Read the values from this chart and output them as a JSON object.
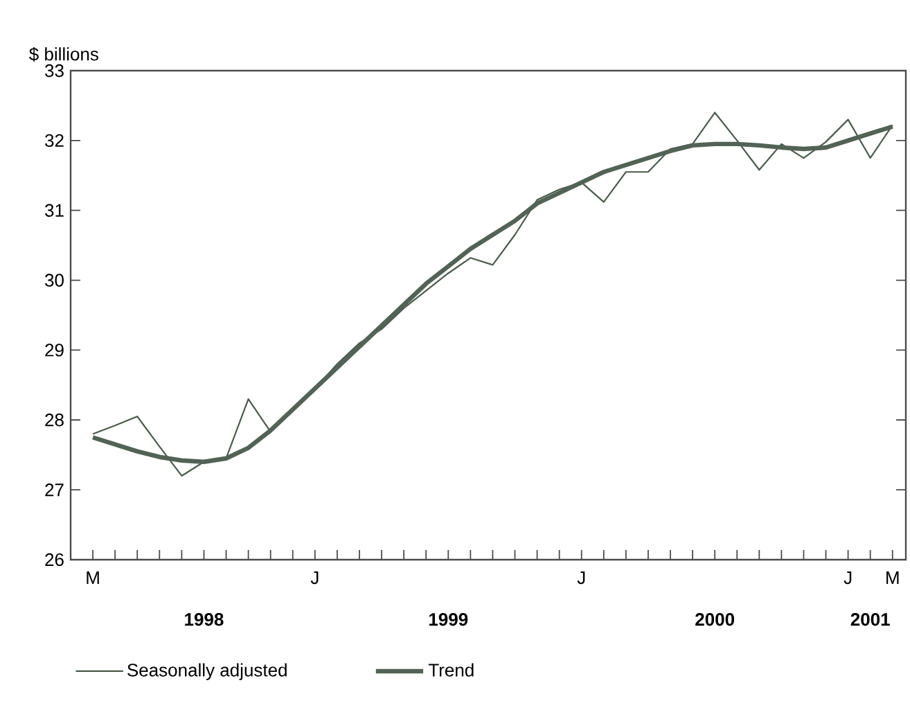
{
  "chart_data": {
    "type": "line",
    "ylabel": "$ billions",
    "categories": [
      "M",
      null,
      null,
      null,
      null,
      null,
      null,
      null,
      null,
      null,
      "J",
      null,
      null,
      null,
      null,
      null,
      null,
      null,
      null,
      null,
      null,
      null,
      "J",
      null,
      null,
      null,
      null,
      null,
      null,
      null,
      null,
      null,
      null,
      null,
      "J",
      null,
      "M"
    ],
    "annotations": [
      "1998",
      "1999",
      "2000",
      "2001"
    ],
    "series": [
      {
        "name": "Seasonally adjusted",
        "color": "#4a5a4c",
        "line_style": "solid",
        "values": [
          27.8,
          27.92,
          28.05,
          27.62,
          27.2,
          27.4,
          27.45,
          28.3,
          27.83,
          28.15,
          28.45,
          28.8,
          29.1,
          29.3,
          29.6,
          29.85,
          30.1,
          30.32,
          30.22,
          30.65,
          31.15,
          31.3,
          31.4,
          31.12,
          31.55,
          31.55,
          31.88,
          31.95,
          32.4,
          32.0,
          31.58,
          31.95,
          31.75,
          31.98,
          32.3,
          31.75,
          32.22
        ]
      },
      {
        "name": "Trend",
        "color": "#536256",
        "line_style": "solid",
        "values": [
          27.75,
          27.65,
          27.55,
          27.47,
          27.42,
          27.4,
          27.45,
          27.6,
          27.85,
          28.15,
          28.45,
          28.75,
          29.05,
          29.35,
          29.65,
          29.95,
          30.2,
          30.45,
          30.65,
          30.85,
          31.1,
          31.25,
          31.4,
          31.55,
          31.65,
          31.75,
          31.85,
          31.93,
          31.95,
          31.95,
          31.93,
          31.9,
          31.88,
          31.9,
          32.0,
          32.1,
          32.2
        ]
      }
    ],
    "ylim": [
      26,
      33
    ],
    "yticks": [
      26,
      27,
      28,
      29,
      30,
      31,
      32,
      33
    ],
    "legend": "bottom",
    "grid": false,
    "marker": "none"
  }
}
